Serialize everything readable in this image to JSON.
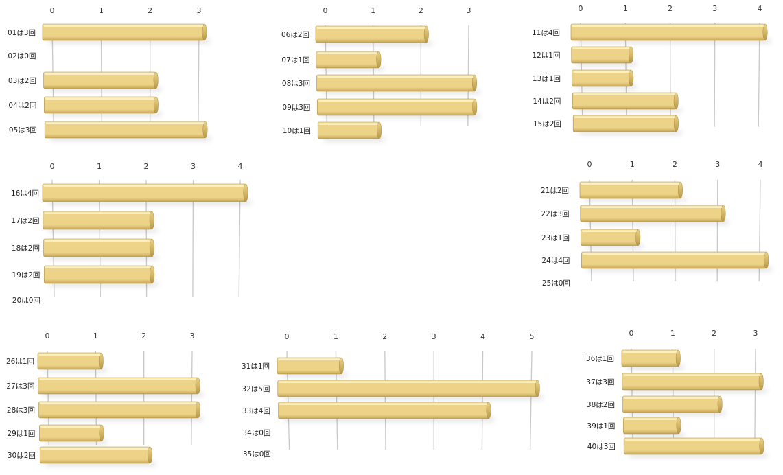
{
  "colors": {
    "bar_top": "#f6e6a6",
    "bar_mid": "#ecd388",
    "bar_bottom": "#c8a757",
    "bar_end": "#b89848",
    "bar_edge": "#a88a3e",
    "grid": "#c8c8c8"
  },
  "chart_data": [
    {
      "type": "bar",
      "orientation": "horizontal",
      "style": "3d",
      "categories": [
        "01は3回",
        "02は0回",
        "03は2回",
        "04は2回",
        "05は3回"
      ],
      "values": [
        3,
        0,
        2,
        2,
        3
      ],
      "xticks": [
        "0",
        "1",
        "2",
        "3"
      ],
      "xlim": [
        0,
        3
      ],
      "grid": true
    },
    {
      "type": "bar",
      "orientation": "horizontal",
      "style": "3d",
      "categories": [
        "06は2回",
        "07は1回",
        "08は3回",
        "09は3回",
        "10は1回"
      ],
      "values": [
        2,
        1,
        3,
        3,
        1
      ],
      "xticks": [
        "0",
        "1",
        "2",
        "3"
      ],
      "xlim": [
        0,
        3
      ],
      "grid": true
    },
    {
      "type": "bar",
      "orientation": "horizontal",
      "style": "3d",
      "categories": [
        "11は4回",
        "12は1回",
        "13は1回",
        "14は2回",
        "15は2回"
      ],
      "values": [
        4,
        1,
        1,
        2,
        2
      ],
      "xticks": [
        "0",
        "1",
        "2",
        "3",
        "4"
      ],
      "xlim": [
        0,
        4
      ],
      "grid": true
    },
    {
      "type": "bar",
      "orientation": "horizontal",
      "style": "3d",
      "categories": [
        "16は4回",
        "17は2回",
        "18は2回",
        "19は2回",
        "20は0回"
      ],
      "values": [
        4,
        2,
        2,
        2,
        0
      ],
      "xticks": [
        "0",
        "1",
        "2",
        "3",
        "4"
      ],
      "xlim": [
        0,
        4
      ],
      "grid": true
    },
    {
      "type": "bar",
      "orientation": "horizontal",
      "style": "3d",
      "categories": [
        "21は2回",
        "22は3回",
        "23は1回",
        "24は4回",
        "25は0回"
      ],
      "values": [
        2,
        3,
        1,
        4,
        0
      ],
      "xticks": [
        "0",
        "1",
        "2",
        "3",
        "4"
      ],
      "xlim": [
        0,
        4
      ],
      "grid": true
    },
    {
      "type": "bar",
      "orientation": "horizontal",
      "style": "3d",
      "categories": [
        "26は1回",
        "27は3回",
        "28は3回",
        "29は1回",
        "30は2回"
      ],
      "values": [
        1,
        3,
        3,
        1,
        2
      ],
      "xticks": [
        "0",
        "1",
        "2",
        "3"
      ],
      "xlim": [
        0,
        3
      ],
      "grid": true
    },
    {
      "type": "bar",
      "orientation": "horizontal",
      "style": "3d",
      "categories": [
        "31は1回",
        "32は5回",
        "33は4回",
        "34は0回",
        "35は0回"
      ],
      "values": [
        1,
        5,
        4,
        0,
        0
      ],
      "xticks": [
        "0",
        "1",
        "2",
        "3",
        "4",
        "5"
      ],
      "xlim": [
        0,
        5
      ],
      "grid": true
    },
    {
      "type": "bar",
      "orientation": "horizontal",
      "style": "3d",
      "categories": [
        "36は1回",
        "37は3回",
        "38は2回",
        "39は1回",
        "40は3回"
      ],
      "values": [
        1,
        3,
        2,
        1,
        3
      ],
      "xticks": [
        "0",
        "1",
        "2",
        "3"
      ],
      "xlim": [
        0,
        3
      ],
      "grid": true
    }
  ]
}
